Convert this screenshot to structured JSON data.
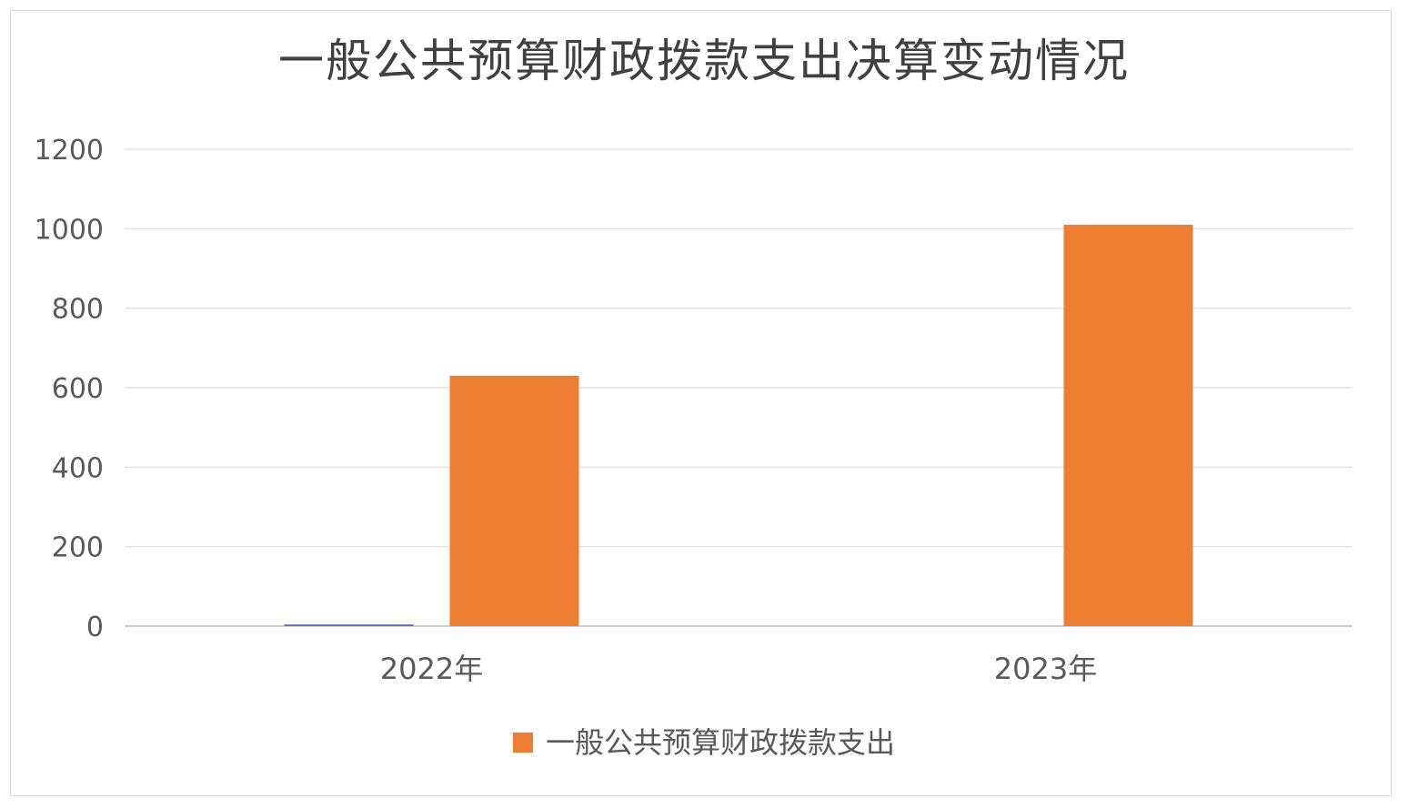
{
  "chart_data": {
    "type": "bar",
    "title": "一般公共预算财政拨款支出决算变动情况",
    "categories": [
      "2022年",
      "2023年"
    ],
    "series": [
      {
        "name": "",
        "color": "#4472c4",
        "values": [
          4,
          0
        ]
      },
      {
        "name": "一般公共预算财政拨款支出",
        "color": "#ed7d31",
        "values": [
          630,
          1010
        ]
      }
    ],
    "yticks": [
      0,
      200,
      400,
      600,
      800,
      1000,
      1200
    ],
    "ylim": [
      0,
      1200
    ],
    "xlabel": "",
    "ylabel": "",
    "grid": true,
    "legend": {
      "position": "bottom",
      "entries": [
        "一般公共预算财政拨款支出"
      ]
    }
  }
}
